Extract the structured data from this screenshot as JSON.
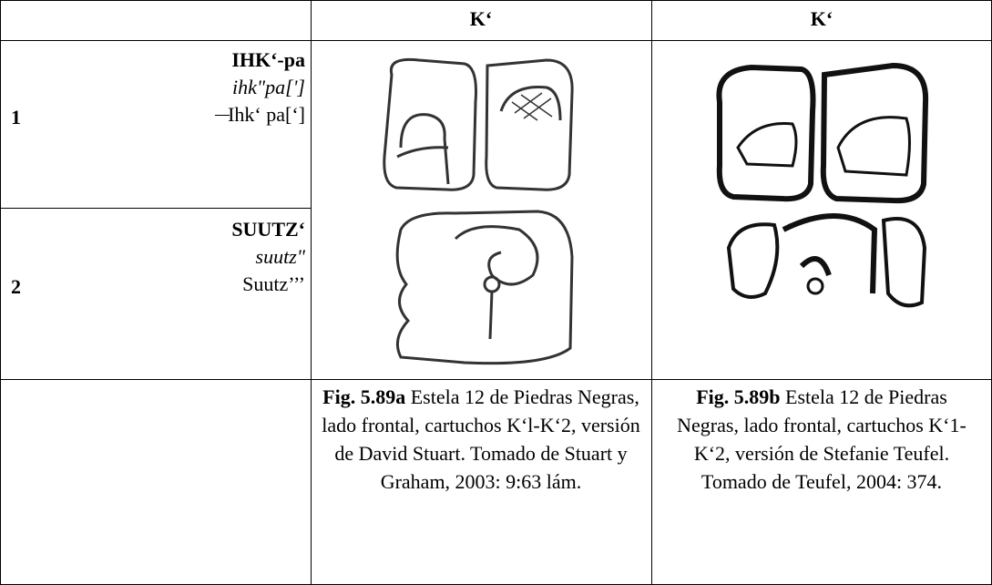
{
  "table": {
    "header": [
      "",
      "K‘",
      "K‘"
    ],
    "rows": [
      {
        "number": "1",
        "logogram": "IHK‘-pa",
        "transliteration": "ihk\"pa[']",
        "transcription": "Ihk‘ pa[‘]"
      },
      {
        "number": "2",
        "logogram": "SUUTZ‘",
        "transliteration": "suutz\"",
        "transcription": "Suutz’’’"
      }
    ],
    "captions": [
      {
        "label": "Fig. 5.89a",
        "text": "Estela 12 de Piedras Negras, lado frontal, cartuchos K‘l-K‘2, versión de David Stuart. Tomado de Stuart y Graham, 2003: 9:63 lám."
      },
      {
        "label": "Fig. 5.89b",
        "text": "Estela 12 de Piedras Negras, lado frontal, cartuchos K‘1-K‘2, versión de Stefanie Teufel. Tomado de Teufel, 2004: 374."
      }
    ]
  }
}
